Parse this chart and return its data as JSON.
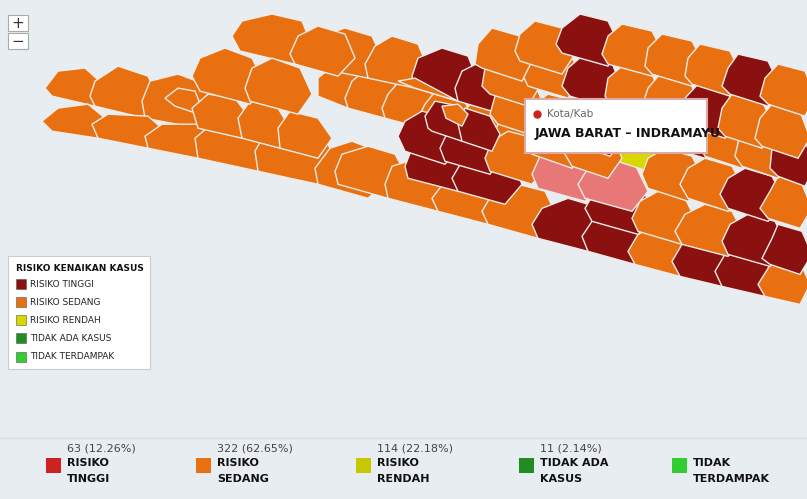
{
  "legend_title": "RISIKO KENAIKAN KASUS",
  "legend_items": [
    {
      "label": "RISIKO TINGGI",
      "color": "#8B1010"
    },
    {
      "label": "RISIKO SEDANG",
      "color": "#E87010"
    },
    {
      "label": "RISIKO RENDAH",
      "color": "#D8D800"
    },
    {
      "label": "TIDAK ADA KASUS",
      "color": "#228B22"
    },
    {
      "label": "TIDAK TERDAMPAK",
      "color": "#32CD32"
    }
  ],
  "bottom_stats": [
    {
      "label1": "RISIKO",
      "label2": "TINGGI",
      "count": "63 (12.26%)",
      "color": "#CC2222"
    },
    {
      "label1": "RISIKO",
      "label2": "SEDANG",
      "count": "322 (62.65%)",
      "color": "#E87010"
    },
    {
      "label1": "RISIKO",
      "label2": "RENDAH",
      "count": "114 (22.18%)",
      "color": "#C8C800"
    },
    {
      "label1": "TIDAK ADA",
      "label2": "KASUS",
      "count": "11 (2.14%)",
      "color": "#228B22"
    },
    {
      "label1": "TIDAK",
      "label2": "TERDAMPAK",
      "count": "",
      "color": "#32CD32"
    }
  ],
  "tooltip_text1": "Kota/Kab",
  "tooltip_text2": "JAWA BARAT – INDRAMAYU",
  "tooltip_dot_color": "#CC2222",
  "map_bg": "#e8edf2",
  "panel_bg": "#e8edf2",
  "dark_red": "#8B1010",
  "orange": "#E87010",
  "yellow": "#D8D800",
  "salmon": "#E87878",
  "dark_green": "#228B22",
  "light_green": "#32CD32",
  "white": "#ffffff",
  "edge_color": "#f0f0f0",
  "ctrl_plus": "+",
  "ctrl_minus": "−"
}
